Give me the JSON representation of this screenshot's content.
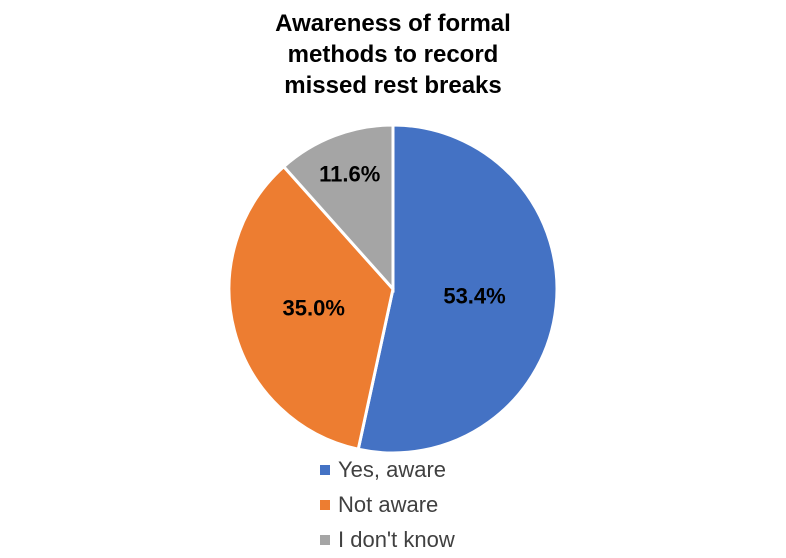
{
  "chart_data": {
    "type": "pie",
    "title": "Awareness of formal methods to record missed rest breaks",
    "categories": [
      "Yes, aware",
      "Not aware",
      "I don't know"
    ],
    "values": [
      53.4,
      35.0,
      11.6
    ],
    "value_labels": [
      "53.4%",
      "35.0%",
      "11.6%"
    ],
    "colors": [
      "#4472c4",
      "#ed7d31",
      "#a5a5a5"
    ],
    "legend": "bottom"
  }
}
